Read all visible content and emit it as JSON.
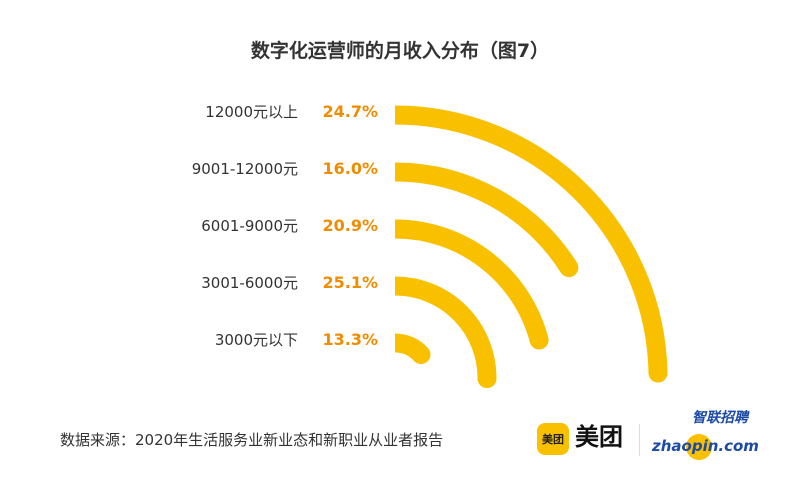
{
  "chart_data": {
    "type": "radial-bar",
    "title": "数字化运营师的月收入分布（图7）",
    "categories": [
      "12000元以上",
      "9001-12000元",
      "6001-9000元",
      "3001-6000元",
      "3000元以下"
    ],
    "values": [
      24.7,
      16.0,
      20.9,
      25.1,
      13.3
    ],
    "labels": [
      "24.7%",
      "16.0%",
      "20.9%",
      "25.1%",
      "13.3%"
    ],
    "unit": "%",
    "full_circle_value": 100,
    "colors": {
      "bar": "#F9C000",
      "label": "#F08C00"
    }
  },
  "footer": {
    "source": "数据来源：2020年生活服务业新业态和新职业从业者报告",
    "logo_meituan_badge": "美团",
    "logo_meituan": "美团",
    "logo_zhaopin_cn": "智联招聘",
    "logo_zhaopin_en": "zhaopin.com"
  }
}
